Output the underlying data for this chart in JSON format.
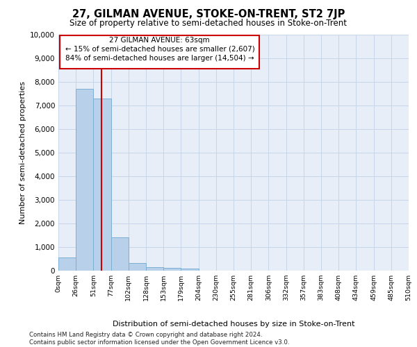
{
  "title": "27, GILMAN AVENUE, STOKE-ON-TRENT, ST2 7JP",
  "subtitle": "Size of property relative to semi-detached houses in Stoke-on-Trent",
  "xlabel": "Distribution of semi-detached houses by size in Stoke-on-Trent",
  "ylabel": "Number of semi-detached properties",
  "footer_line1": "Contains HM Land Registry data © Crown copyright and database right 2024.",
  "footer_line2": "Contains public sector information licensed under the Open Government Licence v3.0.",
  "property_size": 63,
  "annotation_line1": "27 GILMAN AVENUE: 63sqm",
  "annotation_line2": "← 15% of semi-detached houses are smaller (2,607)",
  "annotation_line3": "84% of semi-detached houses are larger (14,504) →",
  "bin_edges": [
    0,
    25.5,
    51,
    76.5,
    102,
    127.5,
    153,
    178.5,
    204,
    229.5,
    255,
    280.5,
    306,
    331.5,
    357,
    382.5,
    408,
    433.5,
    459,
    484.5,
    510
  ],
  "bin_labels": [
    "0sqm",
    "26sqm",
    "51sqm",
    "77sqm",
    "102sqm",
    "128sqm",
    "153sqm",
    "179sqm",
    "204sqm",
    "230sqm",
    "255sqm",
    "281sqm",
    "306sqm",
    "332sqm",
    "357sqm",
    "383sqm",
    "408sqm",
    "434sqm",
    "459sqm",
    "485sqm",
    "510sqm"
  ],
  "counts": [
    550,
    7700,
    7300,
    1400,
    330,
    160,
    110,
    90,
    0,
    0,
    0,
    0,
    0,
    0,
    0,
    0,
    0,
    0,
    0,
    0
  ],
  "bar_color": "#b8d0ea",
  "bar_edge_color": "#7aafd4",
  "red_line_color": "#cc0000",
  "bg_color": "#e8eef8",
  "grid_color": "#c8d4e8",
  "ylim": [
    0,
    10000
  ],
  "yticks": [
    0,
    1000,
    2000,
    3000,
    4000,
    5000,
    6000,
    7000,
    8000,
    9000,
    10000
  ]
}
